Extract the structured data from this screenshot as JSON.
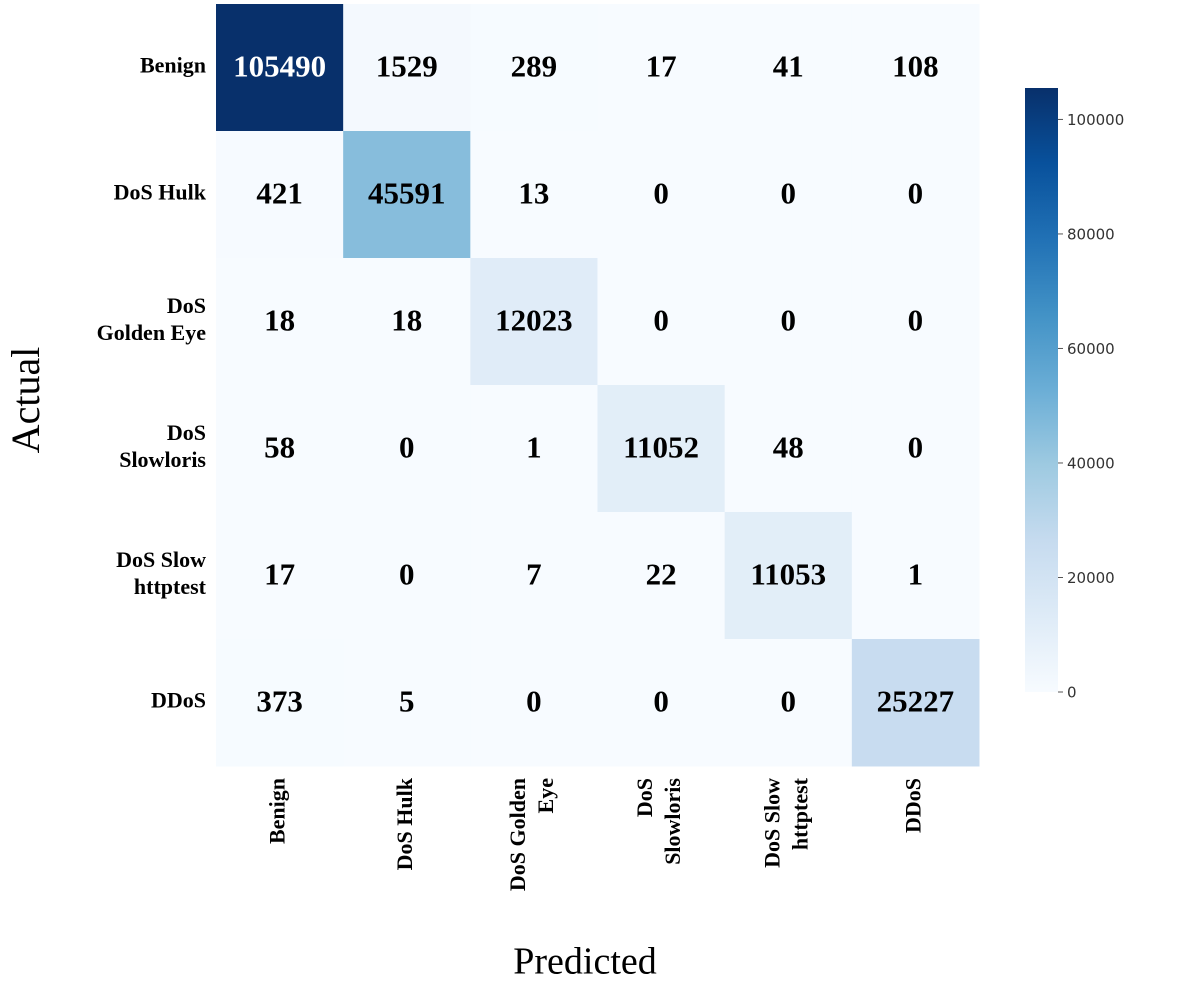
{
  "chart_data": {
    "type": "heatmap",
    "xlabel": "Predicted",
    "ylabel": "Actual",
    "x_categories": [
      [
        "Benign"
      ],
      [
        "DoS Hulk"
      ],
      [
        "DoS Golden",
        "Eye"
      ],
      [
        "DoS",
        "Slowloris"
      ],
      [
        "DoS Slow",
        "httptest"
      ],
      [
        "DDoS"
      ]
    ],
    "y_categories": [
      [
        "Benign"
      ],
      [
        "DoS Hulk"
      ],
      [
        "DoS",
        "Golden Eye"
      ],
      [
        "DoS",
        "Slowloris"
      ],
      [
        "DoS Slow",
        "httptest"
      ],
      [
        "DDoS"
      ]
    ],
    "values": [
      [
        105490,
        1529,
        289,
        17,
        41,
        108
      ],
      [
        421,
        45591,
        13,
        0,
        0,
        0
      ],
      [
        18,
        18,
        12023,
        0,
        0,
        0
      ],
      [
        58,
        0,
        1,
        11052,
        48,
        0
      ],
      [
        17,
        0,
        7,
        22,
        11053,
        1
      ],
      [
        373,
        5,
        0,
        0,
        0,
        25227
      ]
    ],
    "colormap": "Blues",
    "clim": [
      0,
      105490
    ],
    "cticks": [
      0,
      20000,
      40000,
      60000,
      80000,
      100000
    ]
  }
}
